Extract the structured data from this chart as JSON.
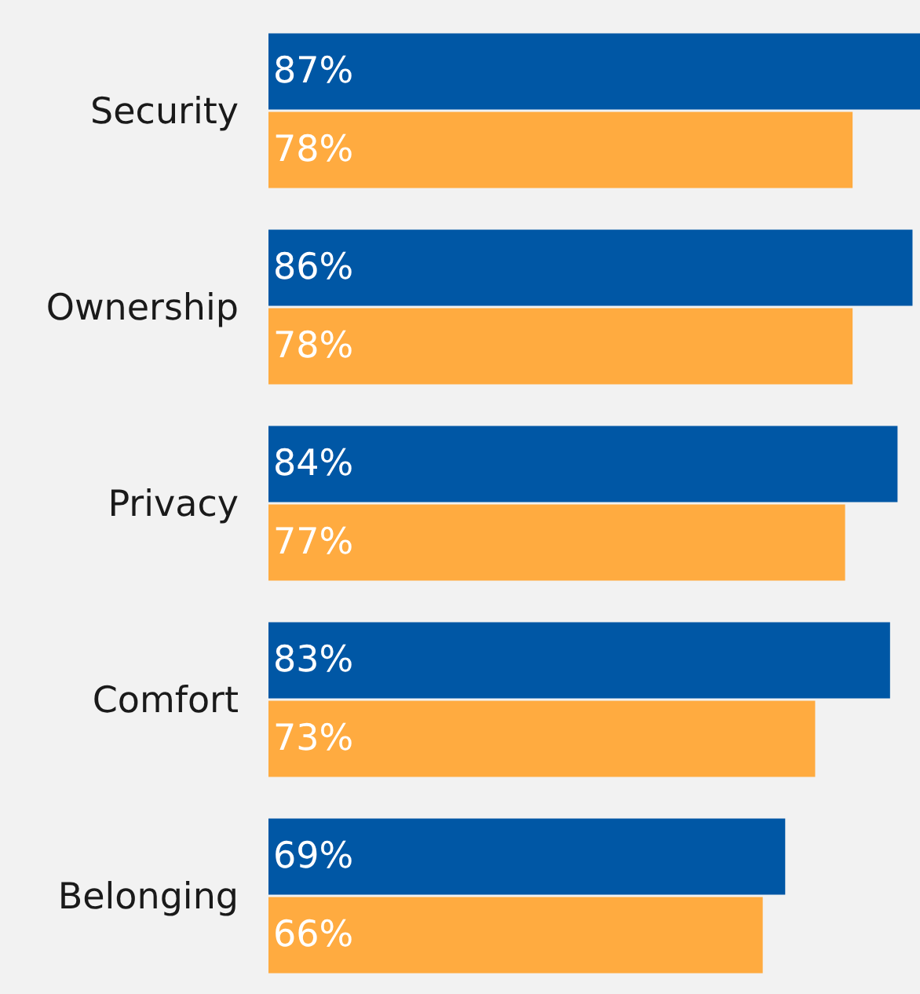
{
  "chart_data": {
    "type": "bar",
    "orientation": "horizontal",
    "categories": [
      "Security",
      "Ownership",
      "Privacy",
      "Comfort",
      "Belonging"
    ],
    "series": [
      {
        "color": "#0057a5",
        "values": [
          87,
          86,
          84,
          83,
          69
        ],
        "value_labels": [
          "87%",
          "86%",
          "84%",
          "83%",
          "69%"
        ]
      },
      {
        "color": "#ffab40",
        "values": [
          78,
          78,
          77,
          73,
          66
        ],
        "value_labels": [
          "78%",
          "78%",
          "77%",
          "73%",
          "66%"
        ]
      }
    ],
    "tick_labels": "y"
  }
}
